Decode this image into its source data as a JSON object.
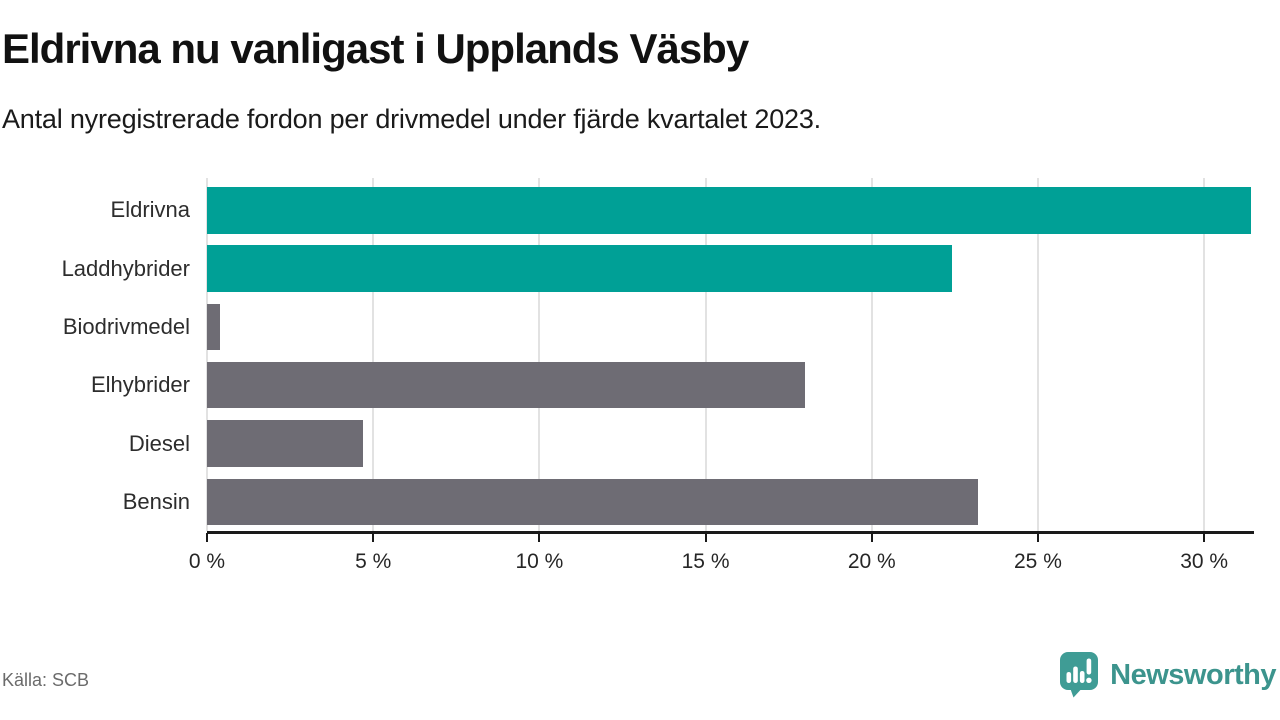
{
  "header": {
    "title": "Eldrivna nu vanligast i Upplands Väsby",
    "subtitle": "Antal nyregistrerade fordon per drivmedel under fjärde kvartalet 2023."
  },
  "chart_data": {
    "type": "bar",
    "orientation": "horizontal",
    "title": "Eldrivna nu vanligast i Upplands Väsby",
    "subtitle": "Antal nyregistrerade fordon per drivmedel under fjärde kvartalet 2023.",
    "categories": [
      "Eldrivna",
      "Laddhybrider",
      "Biodrivmedel",
      "Elhybrider",
      "Diesel",
      "Bensin"
    ],
    "values": [
      31.4,
      22.4,
      0.4,
      18.0,
      4.7,
      23.2
    ],
    "unit": "%",
    "bar_colors": [
      "#00a096",
      "#00a096",
      "#6e6c74",
      "#6e6c74",
      "#6e6c74",
      "#6e6c74"
    ],
    "x_ticks": [
      0,
      5,
      10,
      15,
      20,
      25,
      30
    ],
    "x_tick_labels": [
      "0 %",
      "5 %",
      "10 %",
      "15 %",
      "20 %",
      "25 %",
      "30 %"
    ],
    "xlim": [
      0,
      31.5
    ],
    "grid": true,
    "legend": "none"
  },
  "colors": {
    "teal_bar": "#00a096",
    "gray_bar": "#6e6c74",
    "gridline": "#e2e2e2",
    "axis": "#1a1a1a",
    "brand_teal": "#3c948d"
  },
  "footer": {
    "source": "Källa: SCB",
    "brand_name": "Newsworthy"
  },
  "icons": {
    "brand_logo": "newsworthy-speech-bubble-barchart-icon"
  }
}
